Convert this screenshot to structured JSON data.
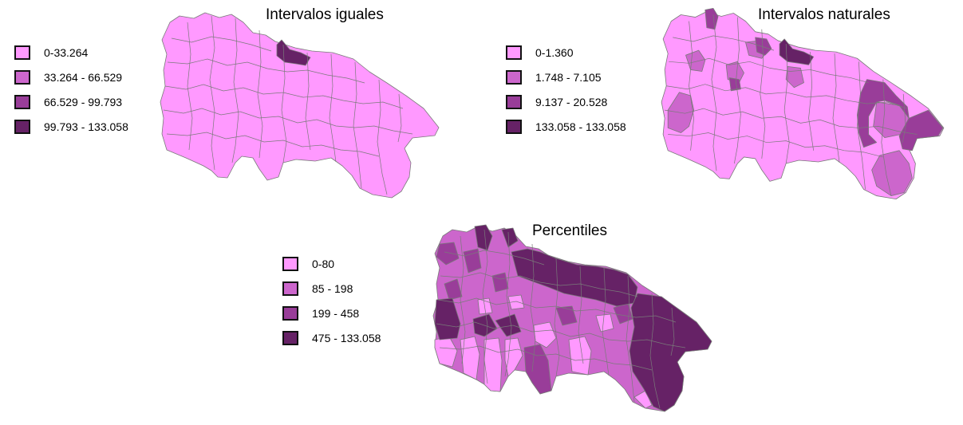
{
  "colors": {
    "class1": "#ff99ff",
    "class2": "#cc66cc",
    "class3": "#993d99",
    "class4": "#662266",
    "border": "#7a7a7a"
  },
  "maps": {
    "equal": {
      "title": "Intervalos iguales",
      "legend": [
        "0-33.264",
        "33.264 - 66.529",
        "66.529 - 99.793",
        "99.793 - 133.058"
      ]
    },
    "natural": {
      "title": "Intervalos naturales",
      "legend": [
        "0-1.360",
        "1.748 - 7.105",
        "9.137 - 20.528",
        "133.058 - 133.058"
      ]
    },
    "percentiles": {
      "title": "Percentiles",
      "legend": [
        "0-80",
        "85 - 198",
        "199 - 458",
        "475 - 133.058"
      ]
    }
  }
}
